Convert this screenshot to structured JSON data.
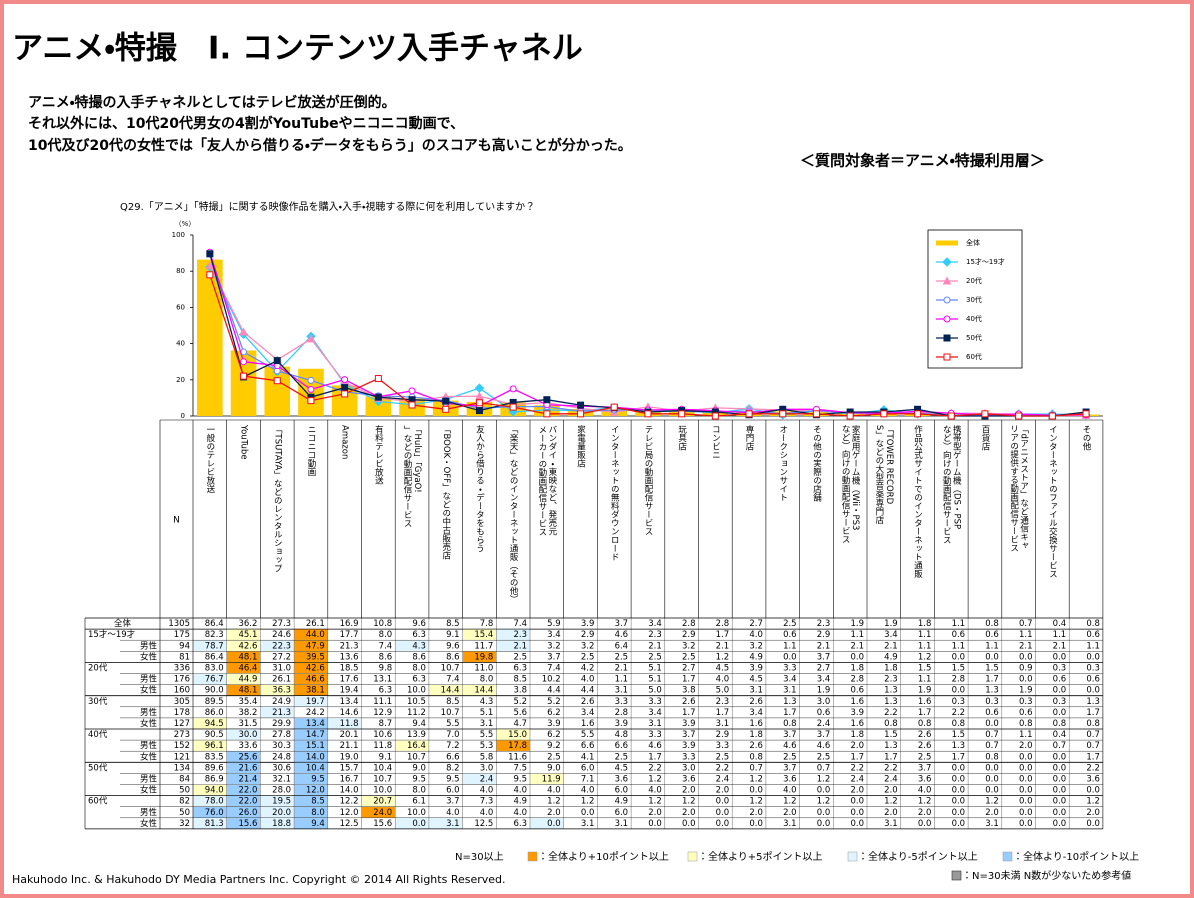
{
  "header": {
    "title": "アニメ・特撮　Ⅰ. コンテンツ入手チャネル",
    "lines": [
      "アニメ・特撮の入手チャネルとしてはテレビ放送が圧倒的。",
      "それ以外には、10代20代男女の4割がYouTubeやニコニコ動画で、",
      "10代及び20代の女性では「友人から借りる・データをもらう」のスコアも高いことが分かった。"
    ],
    "target": "＜質問対象者＝アニメ・特撮利用層＞"
  },
  "chart_data": {
    "type": "combo",
    "title": "Q29.「アニメ」「特撮」に関する映像作品を購入・入手・視聴する際に何を利用していますか？",
    "y_unit": "（%）",
    "ylim": [
      0,
      100
    ],
    "yticks": [
      0,
      20,
      40,
      60,
      80,
      100
    ],
    "n_header": "N",
    "decimals": 1,
    "categories": [
      "一般のテレビ放送",
      "YouTube",
      "「TSUTAYA」などのレンタルショップ",
      "ニコニコ動画",
      "Amazon",
      "有料テレビ放送",
      "「Hulu」「GyaO!」などの動画配信サービス",
      "「BOOK・OFF」などの中古販売店",
      "友人から借りる・データをもらう",
      "「楽天」などのインターネット通販（その他）",
      "バンダイ・東映など、発売元メーカーの動画配信サービス",
      "家電量販店",
      "インターネットの無料ダウンロード",
      "テレビ局の動画配信サービス",
      "玩具店",
      "コンビニ",
      "専門店",
      "オークションサイト",
      "その他の実際の店舗",
      "家庭用ゲーム機（Wii・PS3など）向けの動画配信サービス",
      "「TOWER RECORDS」などの大型音楽専門店",
      "作品公式サイトでのインターネット通販",
      "携帯型ゲーム機（DS・PSPなど）向けの動画配信サービス",
      "百貨店",
      "「dアニメストア」など通信キャリアの提供する動画配信サービス",
      "インターネットのファイル交換サービス",
      "その他"
    ],
    "series": [
      {
        "name": "全体",
        "type": "bar",
        "color": "#ffcc00",
        "n": 1305,
        "values": [
          86.4,
          36.2,
          27.3,
          26.1,
          16.9,
          10.8,
          9.6,
          8.5,
          7.8,
          7.4,
          5.9,
          3.9,
          3.7,
          3.4,
          2.8,
          2.8,
          2.7,
          2.5,
          2.3,
          1.9,
          1.9,
          1.8,
          1.1,
          0.8,
          0.7,
          0.4,
          0.8
        ]
      },
      {
        "name": "15才～19才",
        "type": "line",
        "color": "#33ccff",
        "marker": "diamond",
        "n": 175,
        "values": [
          82.3,
          45.1,
          24.6,
          44.0,
          17.7,
          8.0,
          6.3,
          9.1,
          15.4,
          2.3,
          3.4,
          2.9,
          4.6,
          2.3,
          2.9,
          1.7,
          4.0,
          0.6,
          2.9,
          1.1,
          3.4,
          1.1,
          0.6,
          0.6,
          1.1,
          1.1,
          0.6
        ],
        "subrows": [
          {
            "name": "男性",
            "n": 94,
            "values": [
              78.7,
              42.6,
              22.3,
              47.9,
              21.3,
              7.4,
              4.3,
              9.6,
              11.7,
              2.1,
              3.2,
              3.2,
              6.4,
              2.1,
              3.2,
              2.1,
              3.2,
              1.1,
              2.1,
              2.1,
              2.1,
              1.1,
              1.1,
              1.1,
              2.1,
              2.1,
              1.1
            ]
          },
          {
            "name": "女性",
            "n": 81,
            "values": [
              86.4,
              48.1,
              27.2,
              39.5,
              13.6,
              8.6,
              8.6,
              8.6,
              19.8,
              2.5,
              3.7,
              2.5,
              2.5,
              2.5,
              2.5,
              1.2,
              4.9,
              0.0,
              3.7,
              0.0,
              4.9,
              1.2,
              0.0,
              0.0,
              0.0,
              0.0,
              0.0
            ]
          }
        ]
      },
      {
        "name": "20代",
        "type": "line",
        "color": "#ff88bb",
        "marker": "triangle",
        "n": 336,
        "values": [
          83.0,
          46.4,
          31.0,
          42.6,
          18.5,
          9.8,
          8.0,
          10.7,
          11.0,
          6.3,
          7.4,
          4.2,
          2.1,
          5.1,
          2.7,
          4.5,
          3.9,
          3.3,
          2.7,
          1.8,
          1.8,
          1.5,
          1.5,
          1.5,
          0.9,
          0.3,
          0.3
        ],
        "subrows": [
          {
            "name": "男性",
            "n": 176,
            "values": [
              76.7,
              44.9,
              26.1,
              46.6,
              17.6,
              13.1,
              6.3,
              7.4,
              8.0,
              8.5,
              10.2,
              4.0,
              1.1,
              5.1,
              1.7,
              4.0,
              4.5,
              3.4,
              3.4,
              2.8,
              2.3,
              1.1,
              2.8,
              1.7,
              0.0,
              0.6,
              0.6
            ]
          },
          {
            "name": "女性",
            "n": 160,
            "values": [
              90.0,
              48.1,
              36.3,
              38.1,
              19.4,
              6.3,
              10.0,
              14.4,
              14.4,
              3.8,
              4.4,
              4.4,
              3.1,
              5.0,
              3.8,
              5.0,
              3.1,
              3.1,
              1.9,
              0.6,
              1.3,
              1.9,
              0.0,
              1.3,
              1.9,
              0.0,
              0.0
            ]
          }
        ]
      },
      {
        "name": "30代",
        "type": "line",
        "color": "#6688ff",
        "marker": "circle",
        "n": 305,
        "values": [
          89.5,
          35.4,
          24.9,
          19.7,
          13.4,
          11.1,
          10.5,
          8.5,
          4.3,
          5.2,
          5.2,
          2.6,
          3.3,
          3.3,
          2.6,
          2.3,
          2.6,
          1.3,
          3.0,
          1.6,
          1.3,
          1.6,
          0.3,
          0.3,
          0.3,
          0.3,
          1.3
        ],
        "subrows": [
          {
            "name": "男性",
            "n": 178,
            "values": [
              86.0,
              38.2,
              21.3,
              24.2,
              14.6,
              12.9,
              11.2,
              10.7,
              5.1,
              5.6,
              6.2,
              3.4,
              2.8,
              3.4,
              1.7,
              1.7,
              3.4,
              1.7,
              0.6,
              3.9,
              2.2,
              1.7,
              2.2,
              0.6,
              0.6,
              0.0,
              1.7
            ]
          },
          {
            "name": "女性",
            "n": 127,
            "values": [
              94.5,
              31.5,
              29.9,
              13.4,
              11.8,
              8.7,
              9.4,
              5.5,
              3.1,
              4.7,
              3.9,
              1.6,
              3.9,
              3.1,
              3.9,
              3.1,
              1.6,
              0.8,
              2.4,
              1.6,
              0.8,
              0.8,
              0.8,
              0.0,
              0.8,
              0.8,
              0.8
            ]
          }
        ]
      },
      {
        "name": "40代",
        "type": "line",
        "color": "#ff00ff",
        "marker": "circle",
        "n": 273,
        "values": [
          90.5,
          30.0,
          27.8,
          14.7,
          20.1,
          10.6,
          13.9,
          7.0,
          5.5,
          15.0,
          6.2,
          5.5,
          4.8,
          3.3,
          3.7,
          2.9,
          1.8,
          3.7,
          3.7,
          1.8,
          1.5,
          2.6,
          1.5,
          0.7,
          1.1,
          0.4,
          0.7
        ],
        "subrows": [
          {
            "name": "男性",
            "n": 152,
            "values": [
              96.1,
              33.6,
              30.3,
              15.1,
              21.1,
              11.8,
              16.4,
              7.2,
              5.3,
              17.8,
              9.2,
              6.6,
              6.6,
              4.6,
              3.9,
              3.3,
              2.6,
              4.6,
              4.6,
              2.0,
              1.3,
              2.6,
              1.3,
              0.7,
              2.0,
              0.7,
              0.7
            ]
          },
          {
            "name": "女性",
            "n": 121,
            "values": [
              83.5,
              25.6,
              24.8,
              14.0,
              19.0,
              9.1,
              10.7,
              6.6,
              5.8,
              11.6,
              2.5,
              4.1,
              2.5,
              1.7,
              3.3,
              2.5,
              0.8,
              2.5,
              2.5,
              1.7,
              1.7,
              2.5,
              1.7,
              0.8,
              0.0,
              0.0,
              1.7
            ]
          }
        ]
      },
      {
        "name": "50代",
        "type": "line",
        "color": "#002255",
        "marker": "square",
        "n": 134,
        "values": [
          89.6,
          21.6,
          30.6,
          10.4,
          15.7,
          10.4,
          9.0,
          8.2,
          3.0,
          7.5,
          9.0,
          6.0,
          4.5,
          2.2,
          3.0,
          2.2,
          0.7,
          3.7,
          0.7,
          2.2,
          2.2,
          3.7,
          0.0,
          0.0,
          0.0,
          0.0,
          2.2
        ],
        "subrows": [
          {
            "name": "男性",
            "n": 84,
            "values": [
              86.9,
              21.4,
              32.1,
              9.5,
              16.7,
              10.7,
              9.5,
              9.5,
              2.4,
              9.5,
              11.9,
              7.1,
              3.6,
              1.2,
              3.6,
              2.4,
              1.2,
              3.6,
              1.2,
              2.4,
              2.4,
              3.6,
              0.0,
              0.0,
              0.0,
              0.0,
              3.6
            ]
          },
          {
            "name": "女性",
            "n": 50,
            "values": [
              94.0,
              22.0,
              28.0,
              12.0,
              14.0,
              10.0,
              8.0,
              6.0,
              4.0,
              4.0,
              4.0,
              4.0,
              6.0,
              4.0,
              2.0,
              2.0,
              0.0,
              4.0,
              0.0,
              2.0,
              2.0,
              4.0,
              0.0,
              0.0,
              0.0,
              0.0,
              0.0
            ]
          }
        ]
      },
      {
        "name": "60代",
        "type": "line",
        "color": "#ee1111",
        "marker": "square-open",
        "n": 82,
        "values": [
          78.0,
          22.0,
          19.5,
          8.5,
          12.2,
          20.7,
          6.1,
          3.7,
          7.3,
          4.9,
          1.2,
          1.2,
          4.9,
          1.2,
          1.2,
          0.0,
          1.2,
          1.2,
          1.2,
          0.0,
          1.2,
          1.2,
          0.0,
          1.2,
          0.0,
          0.0,
          1.2
        ],
        "subrows": [
          {
            "name": "男性",
            "n": 50,
            "values": [
              76.0,
              26.0,
              20.0,
              8.0,
              12.0,
              24.0,
              10.0,
              4.0,
              4.0,
              4.0,
              2.0,
              0.0,
              6.0,
              2.0,
              2.0,
              0.0,
              2.0,
              2.0,
              0.0,
              0.0,
              2.0,
              2.0,
              0.0,
              2.0,
              0.0,
              0.0,
              2.0
            ]
          },
          {
            "name": "女性",
            "n": 32,
            "values": [
              81.3,
              15.6,
              18.8,
              9.4,
              12.5,
              15.6,
              0.0,
              3.1,
              12.5,
              6.3,
              0.0,
              3.1,
              3.1,
              0.0,
              0.0,
              0.0,
              0.0,
              3.1,
              0.0,
              0.0,
              3.1,
              0.0,
              0.0,
              3.1,
              0.0,
              0.0,
              0.0
            ]
          }
        ]
      }
    ],
    "highlight_note": "N=30以上",
    "highlights": [
      {
        "points": 10,
        "op": "ge",
        "color": "#ff9900",
        "label": "：全体より+10ポイント以上"
      },
      {
        "points": 5,
        "op": "ge",
        "color": "#ffffc0",
        "label": "：全体より+5ポイント以上"
      },
      {
        "points": -5,
        "op": "le",
        "color": "#dff4ff",
        "label": "：全体より-5ポイント以上"
      },
      {
        "points": -10,
        "op": "le",
        "color": "#99ccff",
        "label": "：全体より-10ポイント以上"
      }
    ],
    "small_n_note": "：N=30未満  N数が少ないため参考値"
  },
  "footer": {
    "copyright": "Hakuhodo Inc. & Hakuhodo DY Media Partners Inc. Copyright © 2014 All Rights Reserved."
  }
}
